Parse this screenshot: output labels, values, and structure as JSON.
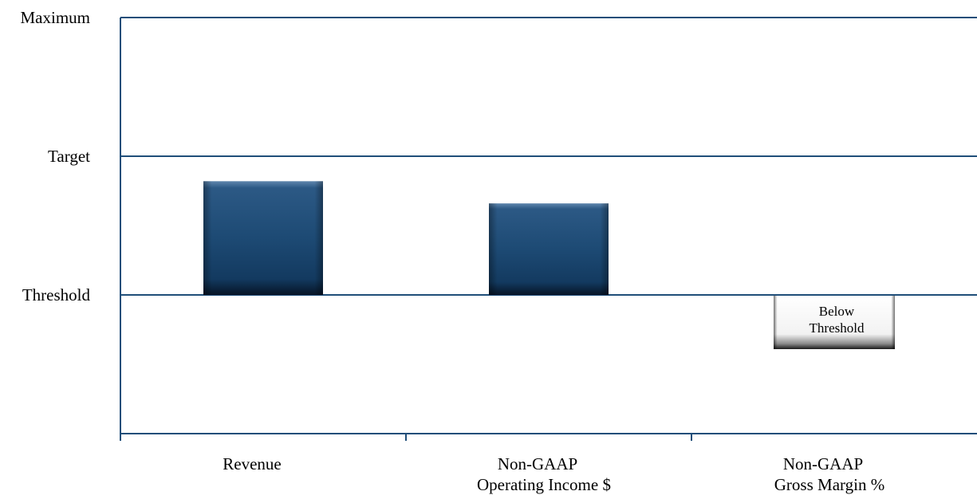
{
  "chart_data": {
    "type": "bar",
    "y_levels": [
      "Threshold",
      "Target",
      "Maximum"
    ],
    "y_tick_labels": [
      "Maximum",
      "Target",
      "Threshold"
    ],
    "categories": [
      [
        "Revenue"
      ],
      [
        "Non-GAAP",
        "Operating Income $"
      ],
      [
        "Non-GAAP",
        "Gross Margin %"
      ]
    ],
    "values": [
      0.82,
      0.66,
      null
    ],
    "value_scale": "fraction of the Threshold-to-Target range (0 = Threshold, 1 = Target)",
    "annotations": [
      {
        "category_index": 2,
        "lines": [
          "Below",
          "Threshold"
        ]
      }
    ],
    "colors": {
      "bar": "#1d4a74",
      "axis": "#1f4e79"
    },
    "grid": true,
    "legend": "none"
  }
}
